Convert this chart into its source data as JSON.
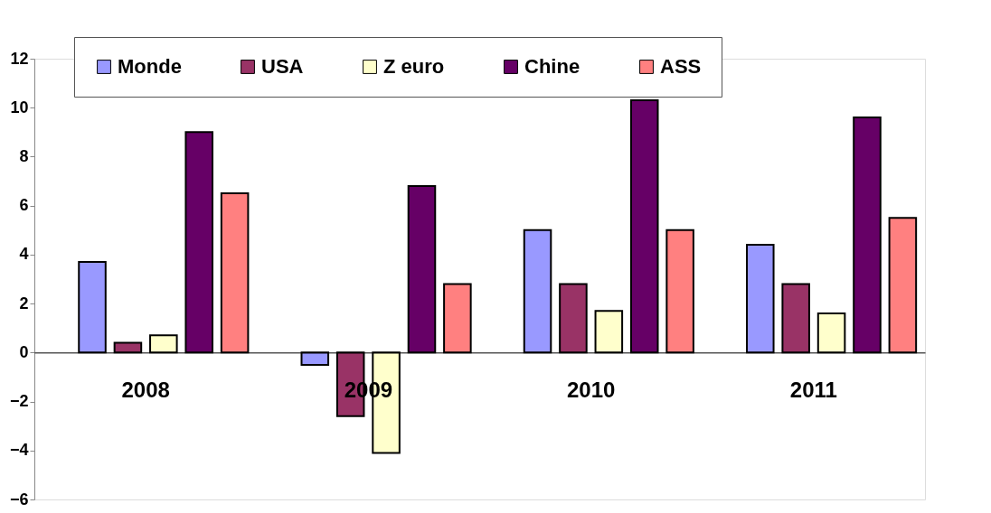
{
  "chart_data": {
    "type": "bar",
    "categories": [
      "2008",
      "2009",
      "2010",
      "2011"
    ],
    "series": [
      {
        "name": "Monde",
        "color": "#9999ff",
        "values": [
          3.7,
          -0.5,
          5.0,
          4.4
        ]
      },
      {
        "name": "USA",
        "color": "#993366",
        "values": [
          0.4,
          -2.6,
          2.8,
          2.8
        ]
      },
      {
        "name": "Z euro",
        "color": "#ffffcc",
        "values": [
          0.7,
          -4.1,
          1.7,
          1.6
        ]
      },
      {
        "name": "Chine",
        "color": "#660066",
        "values": [
          9.0,
          6.8,
          10.3,
          9.6
        ]
      },
      {
        "name": "ASS",
        "color": "#ff8080",
        "values": [
          6.5,
          2.8,
          5.0,
          5.5
        ]
      }
    ],
    "ylim": [
      -6,
      12
    ],
    "yticks": [
      -6,
      -4,
      -2,
      0,
      2,
      4,
      6,
      8,
      10,
      12
    ],
    "grid": false,
    "legend": "top"
  }
}
